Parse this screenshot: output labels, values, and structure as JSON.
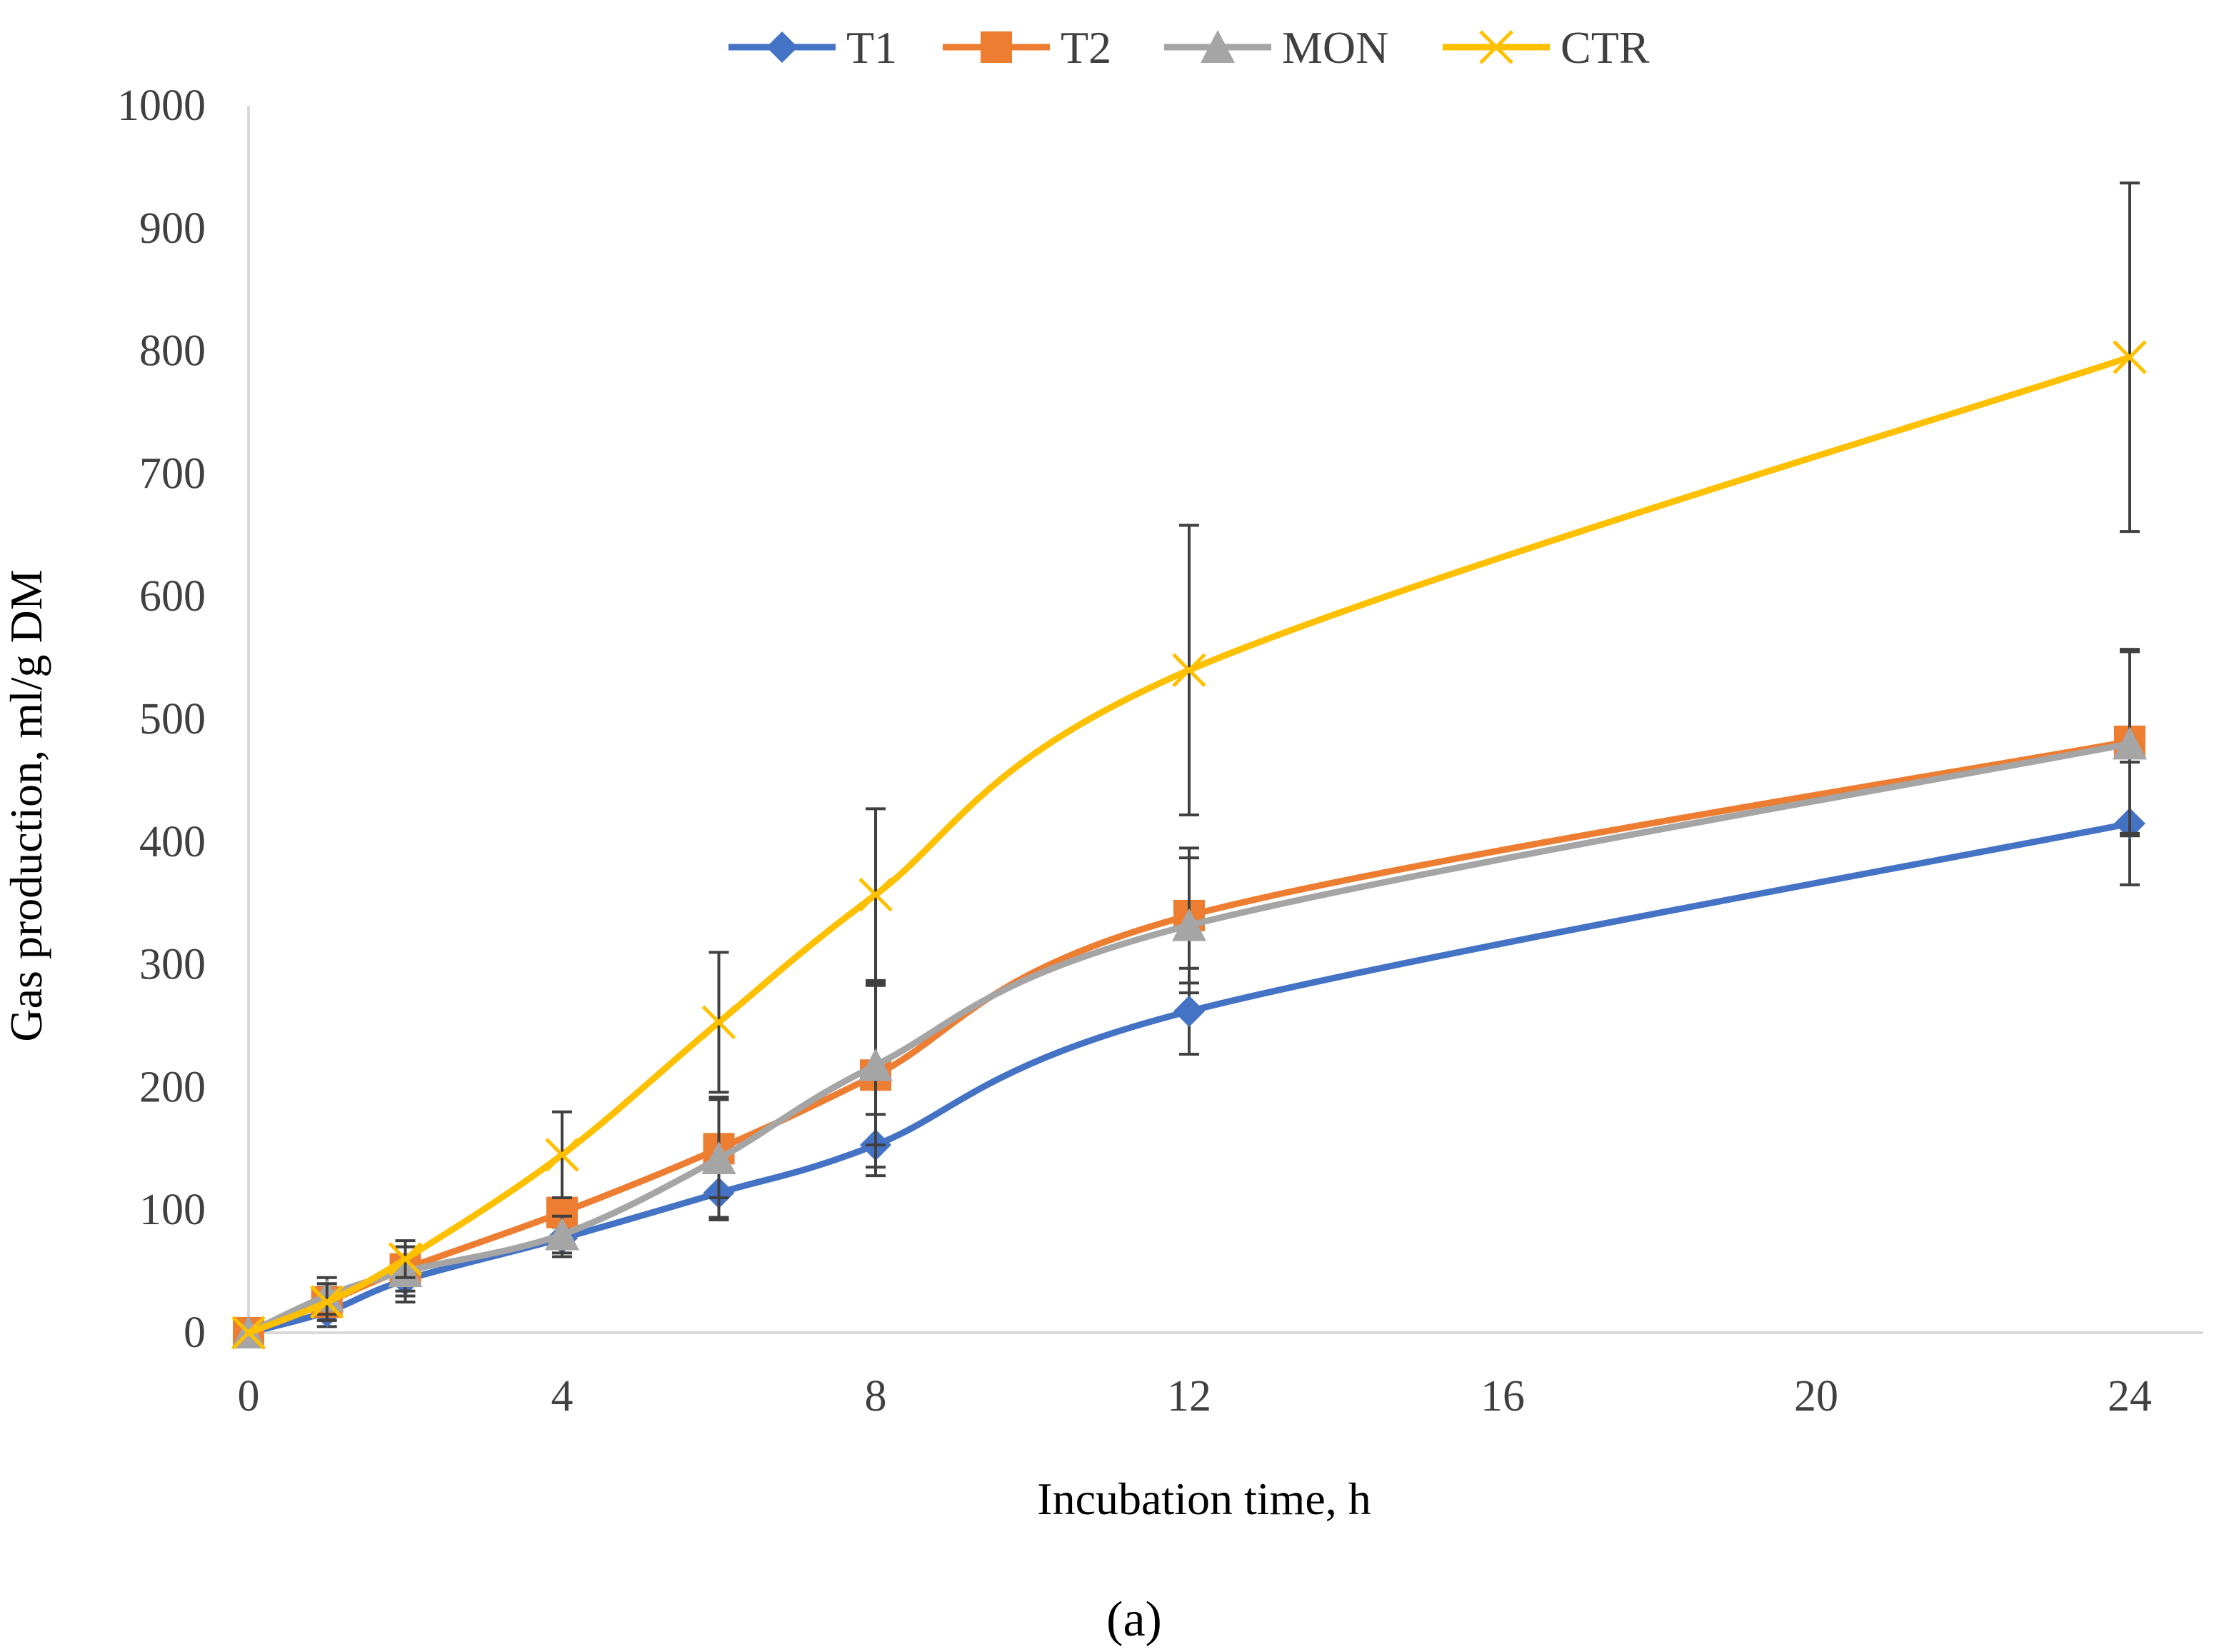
{
  "chart_data": {
    "type": "line",
    "title": "",
    "xlabel": "Incubation time, h",
    "ylabel": "Gas production, ml/g DM",
    "xlim": [
      0,
      25
    ],
    "ylim": [
      0,
      1000
    ],
    "xticks": [
      0,
      4,
      8,
      12,
      16,
      20,
      24
    ],
    "yticks": [
      0,
      100,
      200,
      300,
      400,
      500,
      600,
      700,
      800,
      900,
      1000
    ],
    "grid": false,
    "legend_position": "top-center",
    "smooth": true,
    "series": [
      {
        "name": "T1",
        "color": "#4472C4",
        "marker": "diamond",
        "x": [
          0,
          1,
          2,
          4,
          6,
          8,
          12,
          24
        ],
        "values": [
          0,
          17,
          43,
          77,
          114,
          153,
          262,
          415
        ],
        "error": [
          0,
          12,
          18,
          15,
          20,
          25,
          35,
          50
        ]
      },
      {
        "name": "T2",
        "color": "#ED7D31",
        "marker": "square",
        "x": [
          0,
          1,
          2,
          4,
          6,
          8,
          12,
          24
        ],
        "values": [
          0,
          25,
          52,
          98,
          150,
          210,
          340,
          482
        ],
        "error": [
          0,
          12,
          18,
          12,
          40,
          75,
          55,
          75
        ]
      },
      {
        "name": "MON",
        "color": "#A5A5A5",
        "marker": "triangle",
        "x": [
          0,
          1,
          2,
          4,
          6,
          8,
          12,
          24
        ],
        "values": [
          0,
          30,
          50,
          80,
          142,
          218,
          332,
          480
        ],
        "error": [
          0,
          15,
          20,
          15,
          50,
          65,
          55,
          75
        ]
      },
      {
        "name": "CTR",
        "color": "#FFC000",
        "marker": "x",
        "x": [
          0,
          1,
          2,
          4,
          6,
          8,
          12,
          24
        ],
        "values": [
          0,
          25,
          60,
          145,
          253,
          357,
          540,
          795
        ],
        "error": [
          0,
          15,
          15,
          35,
          57,
          70,
          118,
          142
        ]
      }
    ]
  },
  "figure": {
    "panel_label": "(a)",
    "axis_color": "#D9D9D9",
    "errorbar_color": "#404040"
  }
}
